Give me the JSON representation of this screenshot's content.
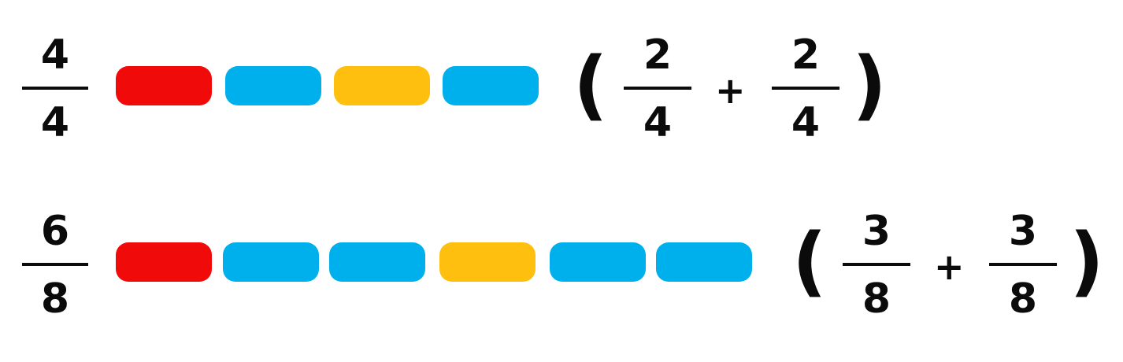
{
  "colors": {
    "red": "#f00a0a",
    "blue": "#00b0ec",
    "yellow": "#ffbf0f",
    "text": "#0b0b0b"
  },
  "rows": [
    {
      "fraction": {
        "numerator": "4",
        "denominator": "4"
      },
      "segments": [
        "red",
        "blue",
        "yellow",
        "blue"
      ],
      "open_paren": "(",
      "plus": "+",
      "close_paren": ")",
      "addend_left": {
        "numerator": "2",
        "denominator": "4"
      },
      "addend_right": {
        "numerator": "2",
        "denominator": "4"
      }
    },
    {
      "fraction": {
        "numerator": "6",
        "denominator": "8"
      },
      "segments": [
        "red",
        "blue",
        "blue",
        "yellow",
        "blue",
        "blue"
      ],
      "open_paren": "(",
      "plus": "+",
      "close_paren": ")",
      "addend_left": {
        "numerator": "3",
        "denominator": "8"
      },
      "addend_right": {
        "numerator": "3",
        "denominator": "8"
      }
    }
  ]
}
